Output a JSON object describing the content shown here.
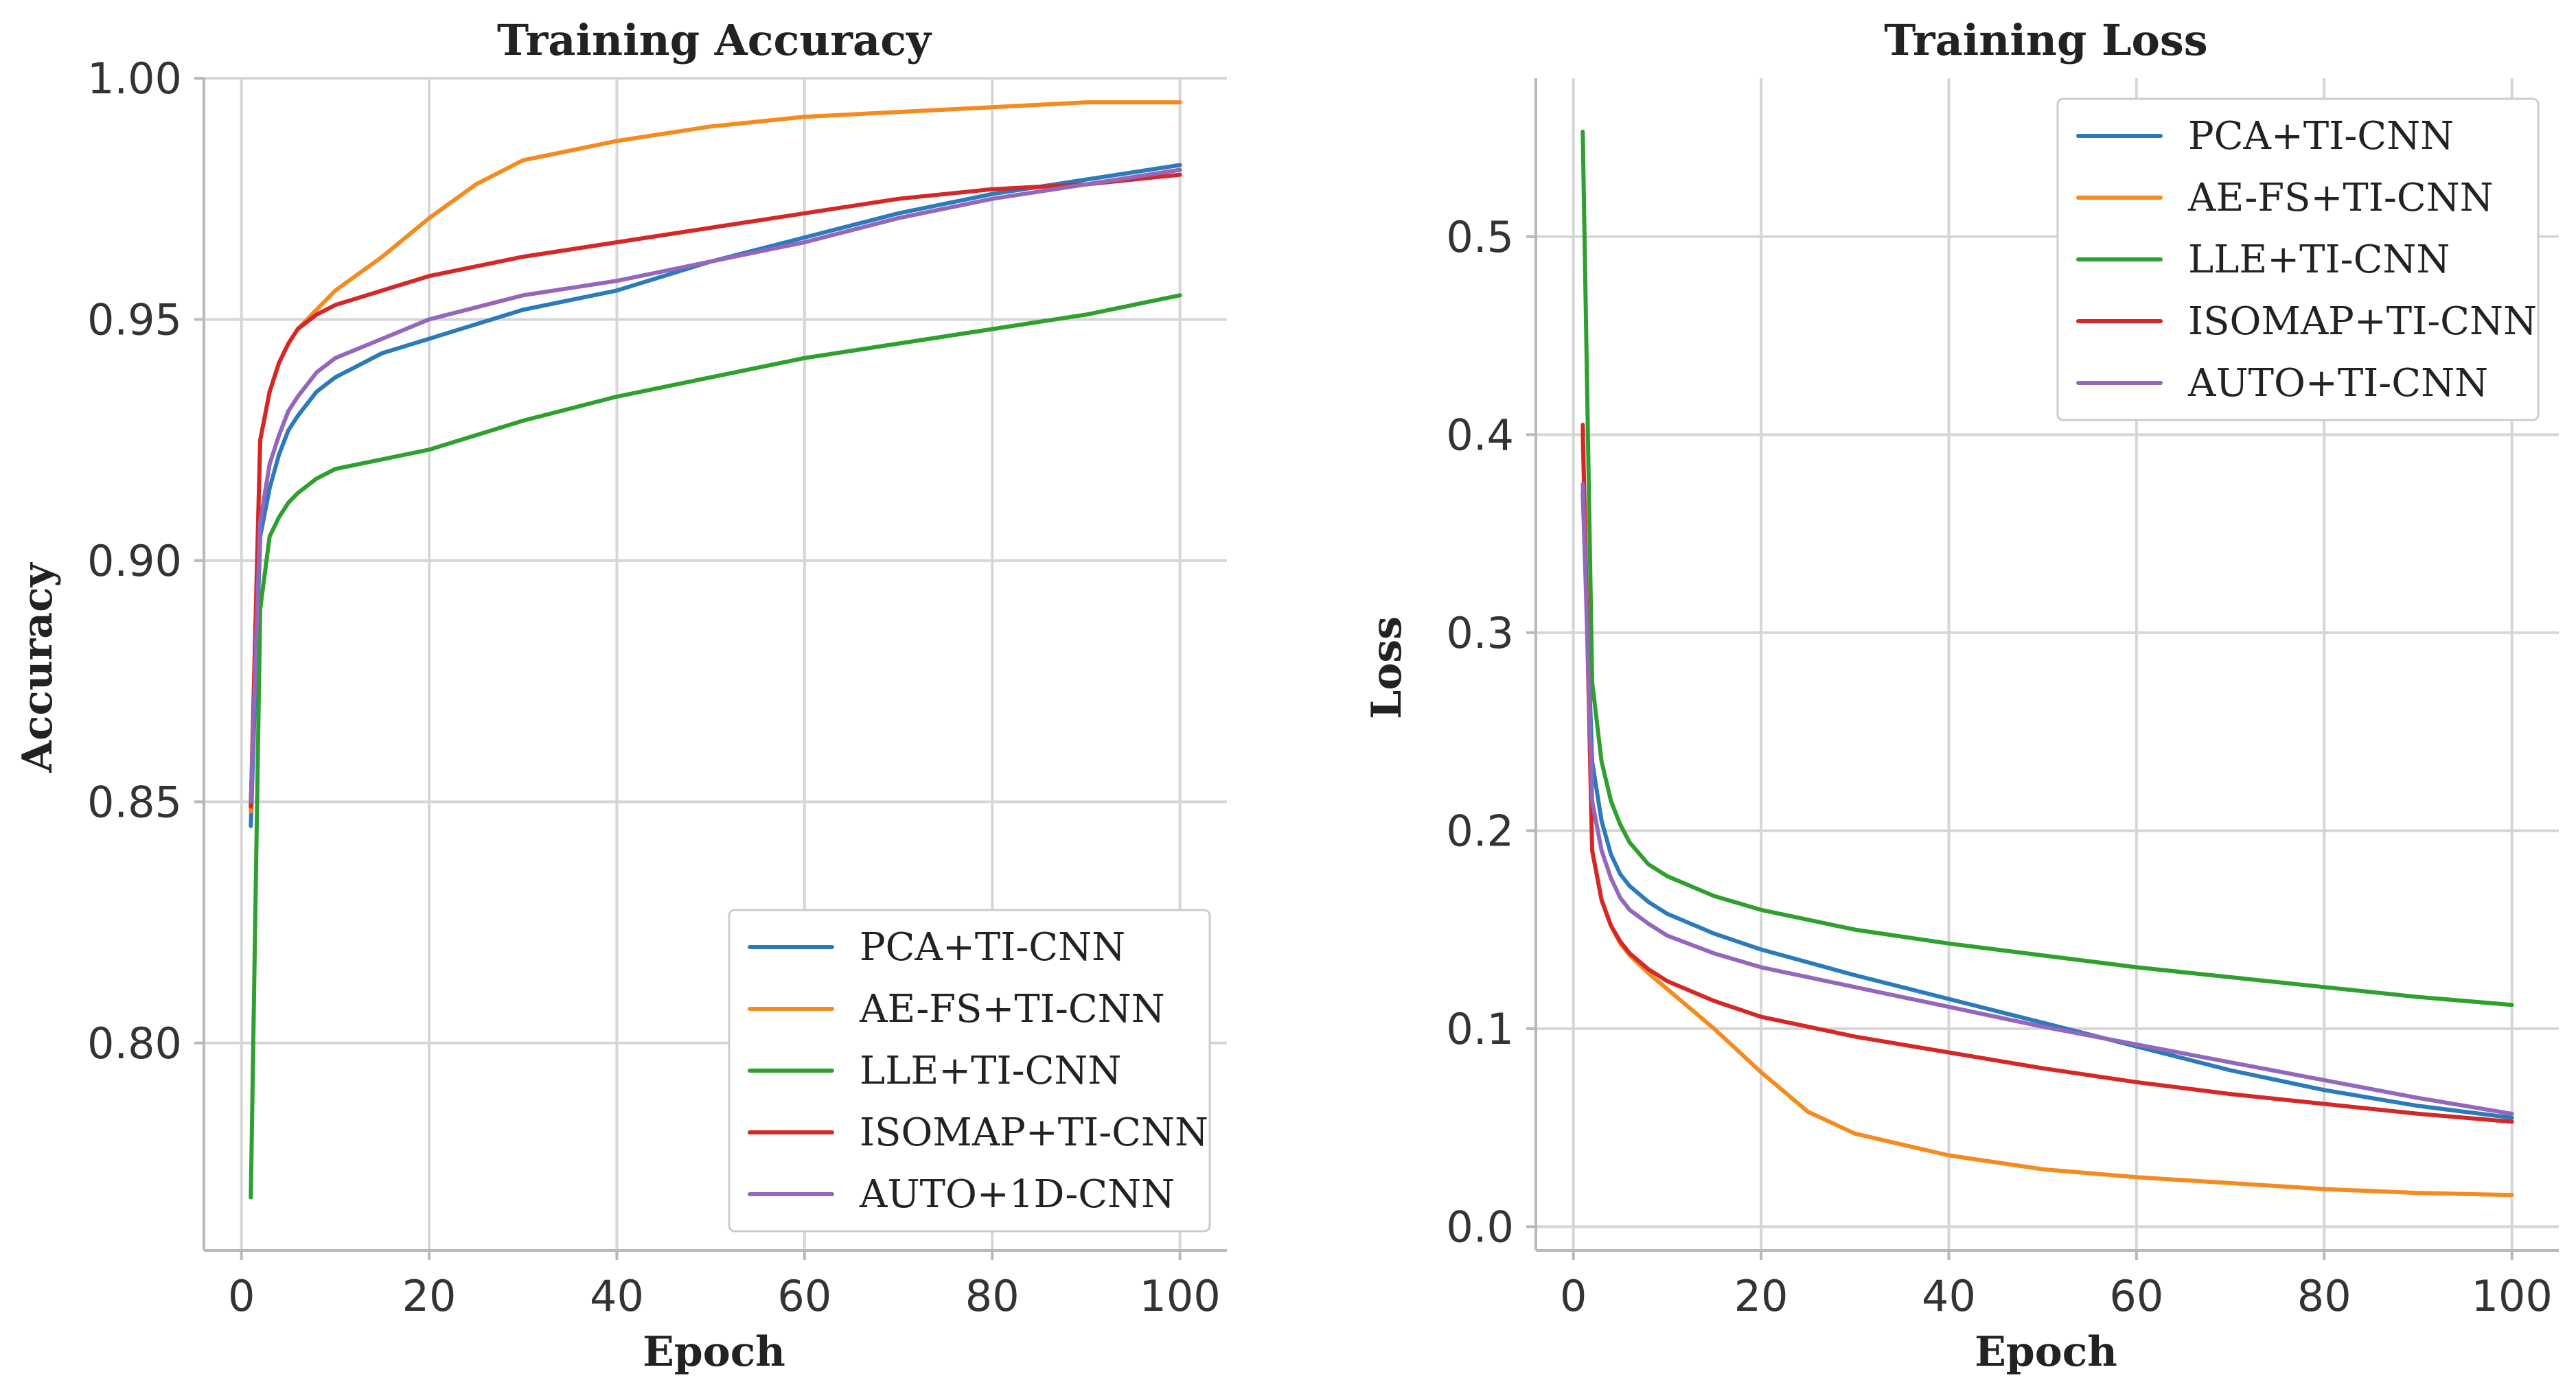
{
  "colors": {
    "blue": "#2b7bba",
    "orange": "#f58a1f",
    "green": "#2fa02f",
    "red": "#d62728",
    "purple": "#9467bd"
  },
  "chart_data": [
    {
      "type": "line",
      "title": "Training Accuracy",
      "xlabel": "Epoch",
      "ylabel": "Accuracy",
      "xlim": [
        -4,
        105
      ],
      "ylim": [
        0.757,
        1.0
      ],
      "xticks": [
        0,
        20,
        40,
        60,
        80,
        100
      ],
      "xtick_labels": [
        "0",
        "20",
        "40",
        "60",
        "80",
        "100"
      ],
      "yticks": [
        0.8,
        0.85,
        0.9,
        0.95,
        1.0
      ],
      "ytick_labels": [
        "0.80",
        "0.85",
        "0.90",
        "0.95",
        "1.00"
      ],
      "grid": true,
      "legend_position": "lower-right",
      "series": [
        {
          "name": "PCA+TI-CNN",
          "color": "#2b7bba",
          "x": [
            1,
            2,
            3,
            4,
            5,
            6,
            8,
            10,
            15,
            20,
            30,
            40,
            50,
            60,
            70,
            80,
            90,
            100
          ],
          "y": [
            0.845,
            0.905,
            0.915,
            0.922,
            0.927,
            0.93,
            0.935,
            0.938,
            0.943,
            0.946,
            0.952,
            0.956,
            0.962,
            0.967,
            0.972,
            0.976,
            0.979,
            0.982
          ]
        },
        {
          "name": "AE-FS+TI-CNN",
          "color": "#f58a1f",
          "x": [
            1,
            2,
            3,
            4,
            5,
            6,
            8,
            10,
            15,
            20,
            25,
            30,
            40,
            50,
            60,
            70,
            80,
            90,
            100
          ],
          "y": [
            0.848,
            0.925,
            0.935,
            0.941,
            0.945,
            0.948,
            0.952,
            0.956,
            0.963,
            0.971,
            0.978,
            0.983,
            0.987,
            0.99,
            0.992,
            0.993,
            0.994,
            0.995,
            0.995
          ]
        },
        {
          "name": "LLE+TI-CNN",
          "color": "#2fa02f",
          "x": [
            1,
            2,
            3,
            4,
            5,
            6,
            8,
            10,
            15,
            20,
            30,
            40,
            50,
            60,
            70,
            80,
            90,
            100
          ],
          "y": [
            0.768,
            0.89,
            0.905,
            0.909,
            0.912,
            0.914,
            0.917,
            0.919,
            0.921,
            0.923,
            0.929,
            0.934,
            0.938,
            0.942,
            0.945,
            0.948,
            0.951,
            0.955
          ]
        },
        {
          "name": "ISOMAP+TI-CNN",
          "color": "#d62728",
          "x": [
            1,
            2,
            3,
            4,
            5,
            6,
            8,
            10,
            15,
            20,
            30,
            40,
            50,
            60,
            70,
            80,
            90,
            100
          ],
          "y": [
            0.849,
            0.925,
            0.935,
            0.941,
            0.945,
            0.948,
            0.951,
            0.953,
            0.956,
            0.959,
            0.963,
            0.966,
            0.969,
            0.972,
            0.975,
            0.977,
            0.978,
            0.98
          ]
        },
        {
          "name": "AUTO+1D-CNN",
          "color": "#9467bd",
          "x": [
            1,
            2,
            3,
            4,
            5,
            6,
            8,
            10,
            15,
            20,
            30,
            40,
            50,
            60,
            70,
            80,
            90,
            100
          ],
          "y": [
            0.85,
            0.908,
            0.92,
            0.926,
            0.931,
            0.934,
            0.939,
            0.942,
            0.946,
            0.95,
            0.955,
            0.958,
            0.962,
            0.966,
            0.971,
            0.975,
            0.978,
            0.981
          ]
        }
      ]
    },
    {
      "type": "line",
      "title": "Training Loss",
      "xlabel": "Epoch",
      "ylabel": "Loss",
      "xlim": [
        -4,
        105
      ],
      "ylim": [
        -0.012,
        0.58
      ],
      "xticks": [
        0,
        20,
        40,
        60,
        80,
        100
      ],
      "xtick_labels": [
        "0",
        "20",
        "40",
        "60",
        "80",
        "100"
      ],
      "yticks": [
        0.0,
        0.1,
        0.2,
        0.3,
        0.4,
        0.5
      ],
      "ytick_labels": [
        "0.0",
        "0.1",
        "0.2",
        "0.3",
        "0.4",
        "0.5"
      ],
      "grid": true,
      "legend_position": "upper-right",
      "series": [
        {
          "name": "PCA+TI-CNN",
          "color": "#2b7bba",
          "x": [
            1,
            2,
            3,
            4,
            5,
            6,
            8,
            10,
            15,
            20,
            30,
            40,
            50,
            60,
            70,
            80,
            90,
            100
          ],
          "y": [
            0.37,
            0.235,
            0.205,
            0.188,
            0.178,
            0.172,
            0.164,
            0.158,
            0.148,
            0.14,
            0.127,
            0.115,
            0.103,
            0.091,
            0.079,
            0.069,
            0.061,
            0.055
          ]
        },
        {
          "name": "AE-FS+TI-CNN",
          "color": "#f58a1f",
          "x": [
            1,
            2,
            3,
            4,
            5,
            6,
            8,
            10,
            15,
            20,
            25,
            30,
            40,
            50,
            60,
            70,
            80,
            90,
            100
          ],
          "y": [
            0.4,
            0.19,
            0.165,
            0.152,
            0.143,
            0.137,
            0.128,
            0.12,
            0.1,
            0.078,
            0.058,
            0.047,
            0.036,
            0.029,
            0.025,
            0.022,
            0.019,
            0.017,
            0.016
          ]
        },
        {
          "name": "LLE+TI-CNN",
          "color": "#2fa02f",
          "x": [
            1,
            2,
            3,
            4,
            5,
            6,
            8,
            10,
            15,
            20,
            30,
            40,
            50,
            60,
            70,
            80,
            90,
            100
          ],
          "y": [
            0.553,
            0.275,
            0.235,
            0.215,
            0.203,
            0.194,
            0.183,
            0.177,
            0.167,
            0.16,
            0.15,
            0.143,
            0.137,
            0.131,
            0.126,
            0.121,
            0.116,
            0.112
          ]
        },
        {
          "name": "ISOMAP+TI-CNN",
          "color": "#d62728",
          "x": [
            1,
            2,
            3,
            4,
            5,
            6,
            8,
            10,
            15,
            20,
            30,
            40,
            50,
            60,
            70,
            80,
            90,
            100
          ],
          "y": [
            0.405,
            0.19,
            0.165,
            0.152,
            0.144,
            0.138,
            0.13,
            0.124,
            0.114,
            0.106,
            0.096,
            0.088,
            0.08,
            0.073,
            0.067,
            0.062,
            0.057,
            0.053
          ]
        },
        {
          "name": "AUTO+TI-CNN",
          "color": "#9467bd",
          "x": [
            1,
            2,
            3,
            4,
            5,
            6,
            8,
            10,
            15,
            20,
            30,
            40,
            50,
            60,
            70,
            80,
            90,
            100
          ],
          "y": [
            0.375,
            0.215,
            0.19,
            0.176,
            0.166,
            0.16,
            0.153,
            0.147,
            0.138,
            0.131,
            0.121,
            0.111,
            0.101,
            0.092,
            0.083,
            0.074,
            0.065,
            0.057
          ]
        }
      ]
    }
  ]
}
